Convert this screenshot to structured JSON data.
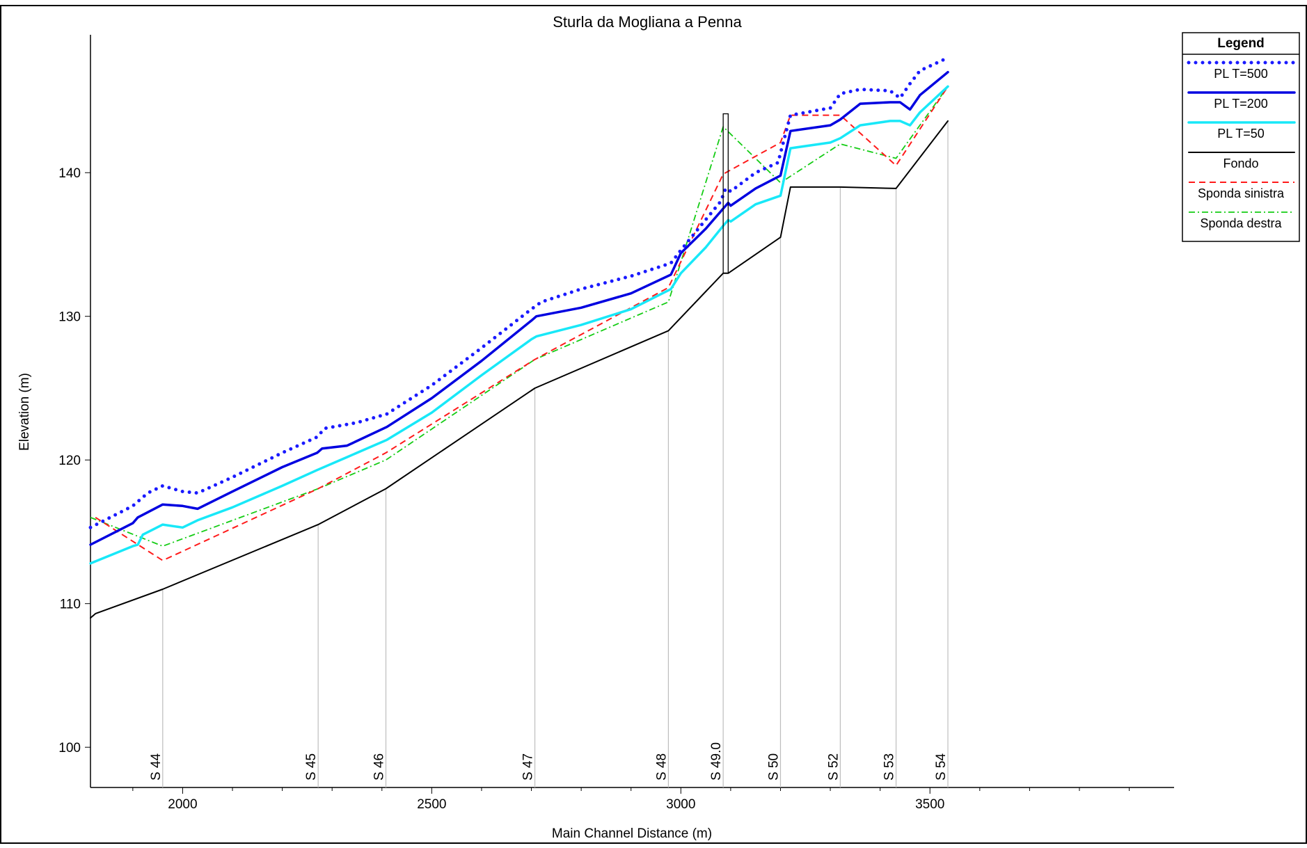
{
  "chart_data": {
    "type": "line",
    "title": "Sturla da Mogliana a Penna",
    "xlabel": "Main Channel Distance (m)",
    "ylabel": "Elevation (m)",
    "xlim": [
      1815,
      3990
    ],
    "ylim": [
      97.2,
      149.6
    ],
    "x_ticks": [
      2000,
      2500,
      3000,
      3500
    ],
    "x_tick_labels": [
      "2000",
      "2500",
      "3000",
      "3500"
    ],
    "y_ticks": [
      100,
      110,
      120,
      130,
      140
    ],
    "y_tick_labels": [
      "100",
      "110",
      "120",
      "130",
      "140"
    ],
    "grid": false,
    "legend": {
      "title": "Legend",
      "placement": "right",
      "entries": [
        "PL  T=500",
        "PL  T=200",
        "PL  T=50",
        "Fondo",
        "Sponda sinistra",
        "Sponda destra"
      ]
    },
    "series": [
      {
        "name": "PL  T=500",
        "color": "#1a1aff",
        "style": "dotted",
        "x": [
          1815,
          1900,
          1930,
          1960,
          2000,
          2030,
          2100,
          2200,
          2270,
          2285,
          2350,
          2410,
          2500,
          2600,
          2700,
          2720,
          2800,
          2900,
          2980,
          3000,
          3040,
          3080,
          3090,
          3100,
          3150,
          3195,
          3220,
          3300,
          3320,
          3360,
          3420,
          3440,
          3460,
          3480,
          3536
        ],
        "values": [
          115.3,
          116.8,
          117.7,
          118.2,
          117.8,
          117.7,
          118.8,
          120.5,
          121.6,
          122.2,
          122.6,
          123.2,
          125.2,
          127.8,
          130.5,
          131.0,
          131.9,
          132.8,
          133.7,
          134.6,
          136.3,
          138.0,
          138.9,
          138.7,
          140.0,
          140.7,
          144.0,
          144.5,
          145.5,
          145.8,
          145.7,
          145.2,
          146.2,
          147.1,
          148.0
        ]
      },
      {
        "name": "PL  T=200",
        "color": "#0000e0",
        "style": "solid",
        "x": [
          1815,
          1900,
          1910,
          1960,
          2000,
          2030,
          2100,
          2200,
          2270,
          2280,
          2330,
          2410,
          2500,
          2600,
          2700,
          2710,
          2800,
          2900,
          2980,
          3000,
          3050,
          3085,
          3095,
          3100,
          3150,
          3200,
          3220,
          3300,
          3320,
          3360,
          3420,
          3440,
          3460,
          3480,
          3536
        ],
        "values": [
          114.1,
          115.6,
          116.0,
          116.9,
          116.8,
          116.6,
          117.8,
          119.5,
          120.5,
          120.8,
          121.0,
          122.3,
          124.3,
          126.9,
          129.7,
          130.0,
          130.6,
          131.6,
          132.9,
          134.4,
          136.1,
          137.5,
          137.9,
          137.7,
          138.9,
          139.8,
          142.9,
          143.3,
          143.7,
          144.8,
          144.9,
          144.9,
          144.4,
          145.4,
          147.0
        ]
      },
      {
        "name": "PL  T=50",
        "color": "#18e8f8",
        "style": "solid",
        "x": [
          1815,
          1900,
          1910,
          1920,
          1960,
          2000,
          2030,
          2100,
          2200,
          2270,
          2330,
          2410,
          2500,
          2600,
          2700,
          2710,
          2800,
          2900,
          2980,
          3000,
          3050,
          3085,
          3095,
          3100,
          3150,
          3200,
          3220,
          3300,
          3320,
          3360,
          3420,
          3440,
          3460,
          3480,
          3536
        ],
        "values": [
          112.8,
          114.0,
          114.1,
          114.8,
          115.5,
          115.3,
          115.8,
          116.7,
          118.2,
          119.3,
          120.2,
          121.4,
          123.3,
          125.9,
          128.4,
          128.6,
          129.4,
          130.5,
          131.9,
          133.0,
          134.8,
          136.3,
          136.7,
          136.6,
          137.8,
          138.4,
          141.7,
          142.1,
          142.4,
          143.3,
          143.6,
          143.6,
          143.3,
          144.2,
          146.0
        ]
      },
      {
        "name": "Fondo",
        "color": "#000000",
        "style": "solid",
        "x": [
          1815,
          1825,
          1960,
          2272,
          2408,
          2707,
          2975,
          3085,
          3095,
          3200,
          3220,
          3320,
          3432,
          3536
        ],
        "values": [
          109.0,
          109.3,
          111.0,
          115.5,
          118.0,
          125.0,
          129.0,
          133.0,
          133.0,
          135.5,
          139.0,
          139.0,
          138.9,
          143.6
        ]
      },
      {
        "name": "Sponda sinistra",
        "color": "#ff1a1a",
        "style": "dashed",
        "x": [
          1825,
          1960,
          2272,
          2408,
          2707,
          2975,
          3085,
          3200,
          3220,
          3320,
          3432,
          3536
        ],
        "values": [
          116.0,
          113.0,
          118.0,
          120.5,
          127.0,
          132.0,
          139.9,
          142.1,
          144.0,
          144.0,
          140.5,
          146.0
        ]
      },
      {
        "name": "Sponda destra",
        "color": "#14cc14",
        "style": "dashdot",
        "x": [
          1815,
          1960,
          2272,
          2408,
          2707,
          2975,
          3085,
          3200,
          3320,
          3432,
          3536
        ],
        "values": [
          116.0,
          114.0,
          118.0,
          120.0,
          127.0,
          131.0,
          143.2,
          139.3,
          142.0,
          141.0,
          146.0
        ]
      }
    ],
    "cross_sections": [
      {
        "label": "S 44",
        "x": 1960
      },
      {
        "label": "S 45",
        "x": 2272
      },
      {
        "label": "S 46",
        "x": 2408
      },
      {
        "label": "S 47",
        "x": 2707
      },
      {
        "label": "S 48",
        "x": 2975
      },
      {
        "label": "S 49.0",
        "x": 3085
      },
      {
        "label": "S 50",
        "x": 3200
      },
      {
        "label": "S 52",
        "x": 3320
      },
      {
        "label": "S 53",
        "x": 3432
      },
      {
        "label": "S 54",
        "x": 3536
      }
    ],
    "structure": {
      "x": [
        3085,
        3095
      ],
      "bottom": 133.0,
      "top": 144.1
    }
  }
}
